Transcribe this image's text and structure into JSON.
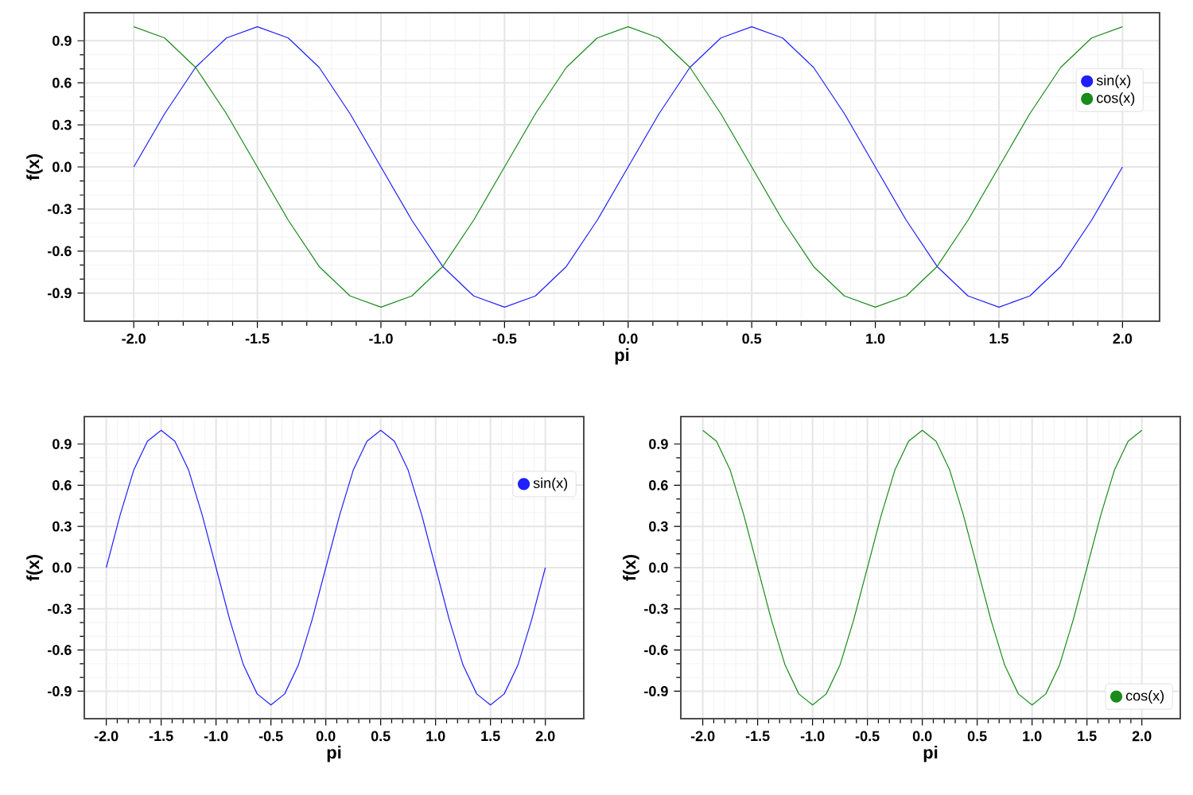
{
  "chart_data": [
    {
      "type": "line",
      "xlabel": "pi",
      "ylabel": "f(x)",
      "xlim": [
        -2.2,
        2.15
      ],
      "ylim": [
        -1.1,
        1.1
      ],
      "grid": true,
      "legend": "top right",
      "marker": "none",
      "xticks": [
        {
          "value": -2,
          "label": "-2.0"
        },
        {
          "value": -1.5,
          "label": "-1.5"
        },
        {
          "value": -1,
          "label": "-1.0"
        },
        {
          "value": -0.5,
          "label": "-0.5"
        },
        {
          "value": 0,
          "label": "0.0"
        },
        {
          "value": 0.5,
          "label": "0.5"
        },
        {
          "value": 1,
          "label": "1.0"
        },
        {
          "value": 1.5,
          "label": "1.5"
        },
        {
          "value": 2,
          "label": "2.0"
        }
      ],
      "yticks": [
        {
          "value": -0.9,
          "label": "-0.9"
        },
        {
          "value": -0.6,
          "label": "-0.6"
        },
        {
          "value": -0.3,
          "label": "-0.3"
        },
        {
          "value": 0,
          "label": "0.0"
        },
        {
          "value": 0.3,
          "label": "0.3"
        },
        {
          "value": 0.6,
          "label": "0.6"
        },
        {
          "value": 0.9,
          "label": "0.9"
        }
      ],
      "x": [
        -2,
        -1.875,
        -1.75,
        -1.625,
        -1.5,
        -1.375,
        -1.25,
        -1.125,
        -1,
        -0.875,
        -0.75,
        -0.625,
        -0.5,
        -0.375,
        -0.25,
        -0.125,
        0,
        0.125,
        0.25,
        0.375,
        0.5,
        0.625,
        0.75,
        0.875,
        1,
        1.125,
        1.25,
        1.375,
        1.5,
        1.625,
        1.75,
        1.875,
        2
      ],
      "series": [
        {
          "name": "sin(x)",
          "color": "#1f1fff",
          "values": [
            0,
            0.38,
            0.71,
            0.92,
            1,
            0.92,
            0.71,
            0.38,
            0,
            -0.38,
            -0.71,
            -0.92,
            -1,
            -0.92,
            -0.71,
            -0.38,
            0,
            0.38,
            0.71,
            0.92,
            1,
            0.92,
            0.71,
            0.38,
            0,
            -0.38,
            -0.71,
            -0.92,
            -1,
            -0.92,
            -0.71,
            -0.38,
            0
          ]
        },
        {
          "name": "cos(x)",
          "color": "#1a8a1a",
          "values": [
            1,
            0.92,
            0.71,
            0.38,
            0,
            -0.38,
            -0.71,
            -0.92,
            -1,
            -0.92,
            -0.71,
            -0.38,
            0,
            0.38,
            0.71,
            0.92,
            1,
            0.92,
            0.71,
            0.38,
            0,
            -0.38,
            -0.71,
            -0.92,
            -1,
            -0.92,
            -0.71,
            -0.38,
            0,
            0.38,
            0.71,
            0.92,
            1
          ]
        }
      ]
    },
    {
      "type": "line",
      "xlabel": "pi",
      "ylabel": "f(x)",
      "xlim": [
        -2.2,
        2.35
      ],
      "ylim": [
        -1.1,
        1.1
      ],
      "grid": true,
      "legend": "top right",
      "marker": "none",
      "xticks": [
        {
          "value": -2,
          "label": "-2.0"
        },
        {
          "value": -1.5,
          "label": "-1.5"
        },
        {
          "value": -1,
          "label": "-1.0"
        },
        {
          "value": -0.5,
          "label": "-0.5"
        },
        {
          "value": 0,
          "label": "0.0"
        },
        {
          "value": 0.5,
          "label": "0.5"
        },
        {
          "value": 1,
          "label": "1.0"
        },
        {
          "value": 1.5,
          "label": "1.5"
        },
        {
          "value": 2,
          "label": "2.0"
        }
      ],
      "yticks": [
        {
          "value": -0.9,
          "label": "-0.9"
        },
        {
          "value": -0.6,
          "label": "-0.6"
        },
        {
          "value": -0.3,
          "label": "-0.3"
        },
        {
          "value": 0,
          "label": "0.0"
        },
        {
          "value": 0.3,
          "label": "0.3"
        },
        {
          "value": 0.6,
          "label": "0.6"
        },
        {
          "value": 0.9,
          "label": "0.9"
        }
      ],
      "x": [
        -2,
        -1.875,
        -1.75,
        -1.625,
        -1.5,
        -1.375,
        -1.25,
        -1.125,
        -1,
        -0.875,
        -0.75,
        -0.625,
        -0.5,
        -0.375,
        -0.25,
        -0.125,
        0,
        0.125,
        0.25,
        0.375,
        0.5,
        0.625,
        0.75,
        0.875,
        1,
        1.125,
        1.25,
        1.375,
        1.5,
        1.625,
        1.75,
        1.875,
        2
      ],
      "series": [
        {
          "name": "sin(x)",
          "color": "#1f1fff",
          "values": [
            0,
            0.38,
            0.71,
            0.92,
            1,
            0.92,
            0.71,
            0.38,
            0,
            -0.38,
            -0.71,
            -0.92,
            -1,
            -0.92,
            -0.71,
            -0.38,
            0,
            0.38,
            0.71,
            0.92,
            1,
            0.92,
            0.71,
            0.38,
            0,
            -0.38,
            -0.71,
            -0.92,
            -1,
            -0.92,
            -0.71,
            -0.38,
            0
          ]
        }
      ]
    },
    {
      "type": "line",
      "xlabel": "pi",
      "ylabel": "f(x)",
      "xlim": [
        -2.2,
        2.35
      ],
      "ylim": [
        -1.1,
        1.1
      ],
      "grid": true,
      "legend": "bottom right",
      "marker": "none",
      "xticks": [
        {
          "value": -2,
          "label": "-2.0"
        },
        {
          "value": -1.5,
          "label": "-1.5"
        },
        {
          "value": -1,
          "label": "-1.0"
        },
        {
          "value": -0.5,
          "label": "-0.5"
        },
        {
          "value": 0,
          "label": "0.0"
        },
        {
          "value": 0.5,
          "label": "0.5"
        },
        {
          "value": 1,
          "label": "1.0"
        },
        {
          "value": 1.5,
          "label": "1.5"
        },
        {
          "value": 2,
          "label": "2.0"
        }
      ],
      "yticks": [
        {
          "value": -0.9,
          "label": "-0.9"
        },
        {
          "value": -0.6,
          "label": "-0.6"
        },
        {
          "value": -0.3,
          "label": "-0.3"
        },
        {
          "value": 0,
          "label": "0.0"
        },
        {
          "value": 0.3,
          "label": "0.3"
        },
        {
          "value": 0.6,
          "label": "0.6"
        },
        {
          "value": 0.9,
          "label": "0.9"
        }
      ],
      "x": [
        -2,
        -1.875,
        -1.75,
        -1.625,
        -1.5,
        -1.375,
        -1.25,
        -1.125,
        -1,
        -0.875,
        -0.75,
        -0.625,
        -0.5,
        -0.375,
        -0.25,
        -0.125,
        0,
        0.125,
        0.25,
        0.375,
        0.5,
        0.625,
        0.75,
        0.875,
        1,
        1.125,
        1.25,
        1.375,
        1.5,
        1.625,
        1.75,
        1.875,
        2
      ],
      "series": [
        {
          "name": "cos(x)",
          "color": "#1a8a1a",
          "values": [
            1,
            0.92,
            0.71,
            0.38,
            0,
            -0.38,
            -0.71,
            -0.92,
            -1,
            -0.92,
            -0.71,
            -0.38,
            0,
            0.38,
            0.71,
            0.92,
            1,
            0.92,
            0.71,
            0.38,
            0,
            -0.38,
            -0.71,
            -0.92,
            -1,
            -0.92,
            -0.71,
            -0.38,
            0,
            0.38,
            0.71,
            0.92,
            1
          ]
        }
      ]
    }
  ]
}
